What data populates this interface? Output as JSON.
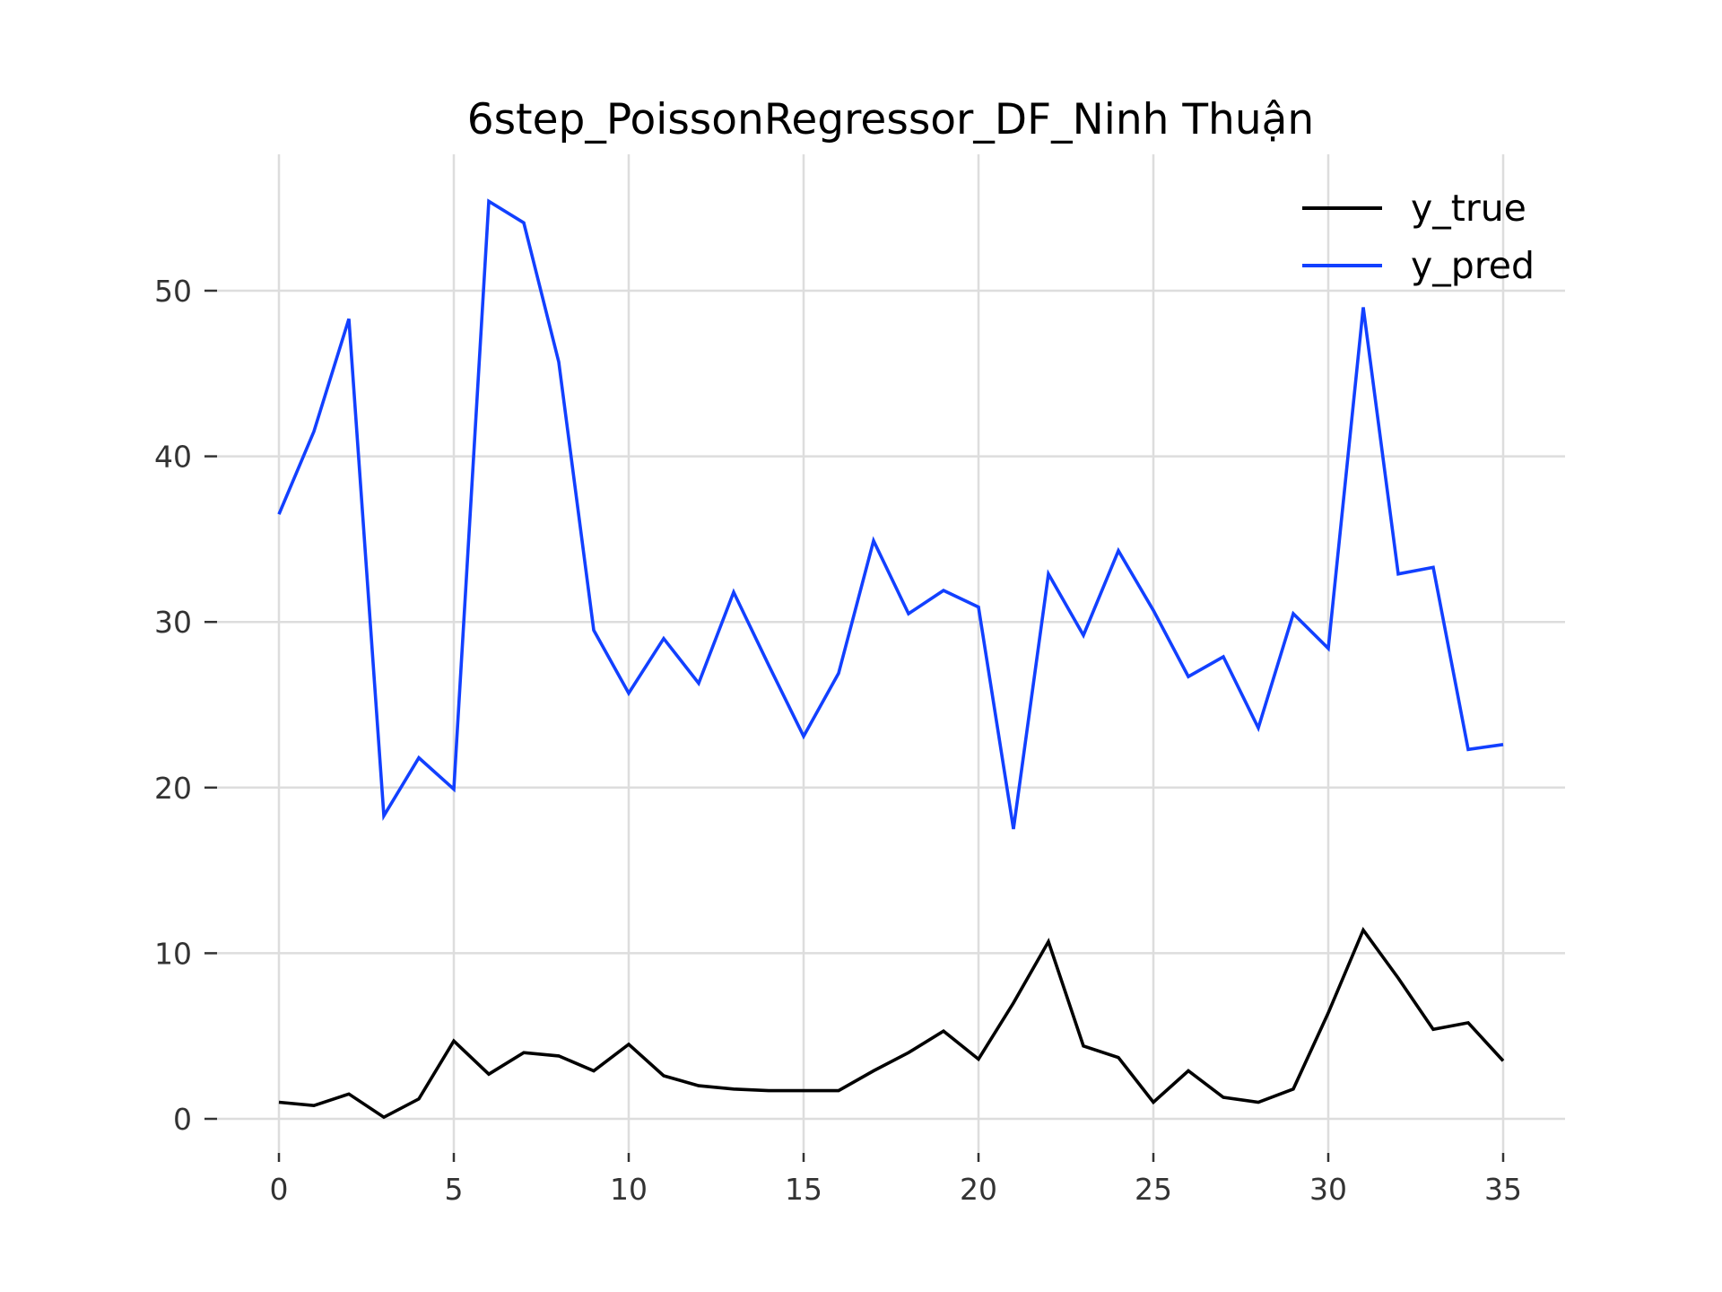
{
  "chart_data": {
    "type": "line",
    "title": "6step_PoissonRegressor_DF_Ninh Thuận",
    "xlabel": "",
    "ylabel": "",
    "xlim": [
      -2,
      37
    ],
    "ylim": [
      -2,
      58
    ],
    "xticks": [
      0,
      5,
      10,
      15,
      20,
      25,
      30,
      35
    ],
    "yticks": [
      0,
      10,
      20,
      30,
      40,
      50
    ],
    "grid": true,
    "legend_position": "top-right",
    "x": [
      0,
      1,
      2,
      3,
      4,
      5,
      6,
      7,
      8,
      9,
      10,
      11,
      12,
      13,
      14,
      15,
      16,
      17,
      18,
      19,
      20,
      21,
      22,
      23,
      24,
      25,
      26,
      27,
      28,
      29,
      30,
      31,
      32,
      33,
      34,
      35
    ],
    "series": [
      {
        "name": "y_true",
        "color": "#000000",
        "values": [
          1.0,
          0.8,
          1.5,
          0.1,
          1.2,
          4.7,
          2.7,
          4.0,
          3.8,
          2.9,
          4.5,
          2.6,
          2.0,
          1.8,
          1.7,
          1.7,
          1.7,
          2.9,
          4.0,
          5.3,
          3.6,
          7.0,
          10.7,
          4.4,
          3.7,
          1.0,
          2.9,
          1.3,
          1.0,
          1.8,
          6.4,
          11.4,
          8.5,
          5.4,
          5.8,
          3.5
        ]
      },
      {
        "name": "y_pred",
        "color": "#1240ff",
        "values": [
          36.5,
          41.5,
          48.3,
          18.3,
          21.8,
          19.9,
          55.4,
          54.1,
          45.7,
          29.5,
          25.7,
          29.0,
          26.3,
          31.8,
          27.4,
          23.1,
          26.9,
          34.9,
          30.5,
          31.9,
          30.9,
          17.5,
          32.9,
          29.2,
          34.3,
          30.7,
          26.7,
          27.9,
          23.6,
          30.5,
          28.4,
          49.0,
          32.9,
          33.3,
          22.3,
          22.6
        ]
      }
    ]
  }
}
